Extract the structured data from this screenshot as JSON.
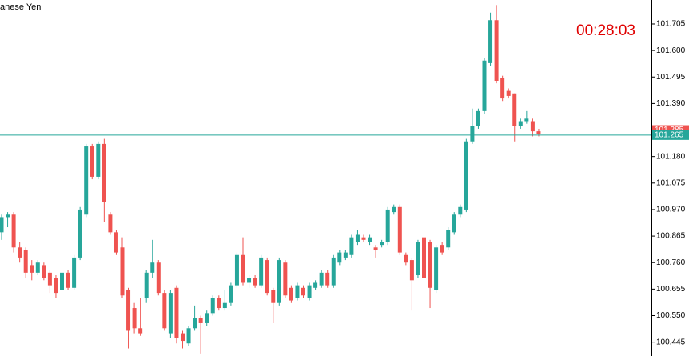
{
  "chart_data": {
    "type": "candlestick",
    "title": "anese Yen",
    "timer": "00:28:03",
    "up_color": "#26a69a",
    "down_color": "#ef5350",
    "open": [
      100.88,
      100.94,
      100.95,
      100.82,
      100.81,
      100.75,
      100.72,
      100.75,
      100.72,
      100.7,
      100.65,
      100.72,
      100.66,
      100.78,
      100.95,
      101.22,
      101.1,
      101.23,
      100.95,
      100.88,
      100.82,
      100.65,
      100.58,
      100.5,
      100.62,
      100.72,
      100.76,
      100.64,
      100.48,
      100.66,
      100.48,
      100.44,
      100.5,
      100.54,
      100.52,
      100.56,
      100.62,
      100.58,
      100.6,
      100.67,
      100.79,
      100.68,
      100.7,
      100.67,
      100.77,
      100.65,
      100.6,
      100.76,
      100.66,
      100.62,
      100.66,
      100.62,
      100.66,
      100.67,
      100.72,
      100.67,
      100.76,
      100.78,
      100.79,
      100.84,
      100.86,
      100.84,
      100.82,
      100.83,
      100.84,
      100.96,
      100.98,
      100.79,
      100.77,
      100.71,
      100.86,
      100.84,
      100.65,
      100.83,
      100.82,
      100.88,
      100.95,
      100.97,
      101.24,
      101.3,
      101.36,
      101.55,
      101.72,
      101.49,
      101.44,
      101.43,
      101.3,
      101.32,
      101.32,
      101.28
    ],
    "high": [
      100.95,
      100.96,
      100.96,
      100.84,
      100.82,
      100.77,
      100.77,
      100.76,
      100.73,
      100.71,
      100.73,
      100.73,
      100.79,
      100.98,
      101.23,
      101.23,
      101.24,
      101.25,
      100.96,
      100.89,
      100.86,
      100.66,
      100.6,
      100.62,
      100.73,
      100.85,
      100.77,
      100.65,
      100.65,
      100.67,
      100.49,
      100.51,
      100.59,
      100.55,
      100.57,
      100.63,
      100.63,
      100.65,
      100.68,
      100.8,
      100.86,
      100.71,
      100.71,
      100.79,
      100.78,
      100.66,
      100.78,
      100.77,
      100.67,
      100.68,
      100.67,
      100.68,
      100.69,
      100.73,
      100.73,
      100.79,
      100.81,
      100.81,
      100.87,
      100.89,
      100.87,
      100.87,
      100.83,
      100.85,
      100.98,
      100.99,
      100.99,
      100.8,
      100.78,
      100.85,
      100.94,
      100.85,
      100.83,
      100.84,
      100.9,
      100.96,
      100.99,
      101.25,
      101.37,
      101.37,
      101.57,
      101.75,
      101.78,
      101.5,
      101.45,
      101.43,
      101.33,
      101.36,
      101.33,
      101.29
    ],
    "low": [
      100.85,
      100.9,
      100.8,
      100.76,
      100.7,
      100.69,
      100.71,
      100.69,
      100.64,
      100.62,
      100.64,
      100.65,
      100.65,
      100.77,
      100.94,
      101.09,
      101.09,
      100.92,
      100.87,
      100.79,
      100.62,
      100.42,
      100.48,
      100.47,
      100.6,
      100.7,
      100.63,
      100.49,
      100.46,
      100.44,
      100.42,
      100.43,
      100.49,
      100.4,
      100.51,
      100.55,
      100.57,
      100.57,
      100.59,
      100.66,
      100.67,
      100.66,
      100.66,
      100.66,
      100.63,
      100.52,
      100.59,
      100.62,
      100.6,
      100.61,
      100.62,
      100.61,
      100.65,
      100.66,
      100.66,
      100.66,
      100.75,
      100.77,
      100.78,
      100.83,
      100.84,
      100.83,
      100.78,
      100.82,
      100.83,
      100.95,
      100.79,
      100.75,
      100.57,
      100.7,
      100.69,
      100.58,
      100.64,
      100.79,
      100.81,
      100.87,
      100.94,
      100.96,
      101.23,
      101.29,
      101.35,
      101.54,
      101.47,
      101.4,
      101.41,
      101.24,
      101.29,
      101.31,
      101.26,
      101.26
    ],
    "close": [
      100.94,
      100.95,
      100.82,
      100.78,
      100.72,
      100.72,
      100.76,
      100.7,
      100.67,
      100.64,
      100.72,
      100.66,
      100.78,
      100.97,
      101.22,
      101.1,
      101.23,
      101.0,
      100.88,
      100.8,
      100.63,
      100.49,
      100.5,
      100.48,
      100.72,
      100.76,
      100.64,
      100.5,
      100.64,
      100.46,
      100.45,
      100.5,
      100.54,
      100.52,
      100.56,
      100.62,
      100.58,
      100.6,
      100.67,
      100.79,
      100.68,
      100.7,
      100.67,
      100.78,
      100.64,
      100.6,
      100.77,
      100.63,
      100.61,
      100.67,
      100.63,
      100.67,
      100.68,
      100.72,
      100.67,
      100.78,
      100.8,
      100.8,
      100.86,
      100.87,
      100.85,
      100.86,
      100.81,
      100.84,
      100.97,
      100.98,
      100.8,
      100.76,
      100.69,
      100.84,
      100.7,
      100.66,
      100.82,
      100.8,
      100.89,
      100.95,
      100.98,
      101.24,
      101.3,
      101.36,
      101.56,
      101.72,
      101.48,
      101.41,
      101.42,
      101.3,
      101.32,
      101.33,
      101.28,
      101.27
    ],
    "ylim": [
      100.39,
      101.8
    ],
    "yticks": [
      101.705,
      {
        "value": 101.6,
        "label": "101.600"
      },
      101.495,
      {
        "value": 101.39,
        "label": "101.390"
      },
      101.285,
      {
        "value": 101.18,
        "label": "101.180"
      },
      101.075,
      {
        "value": 100.97,
        "label": "100.970"
      },
      100.865,
      {
        "value": 100.76,
        "label": "100.760"
      },
      100.655,
      {
        "value": 100.55,
        "label": "100.550"
      },
      100.445
    ],
    "price_lines": [
      {
        "value": 101.285,
        "color": "#ef5350"
      },
      {
        "value": 101.265,
        "color": "#26a69a"
      }
    ]
  }
}
